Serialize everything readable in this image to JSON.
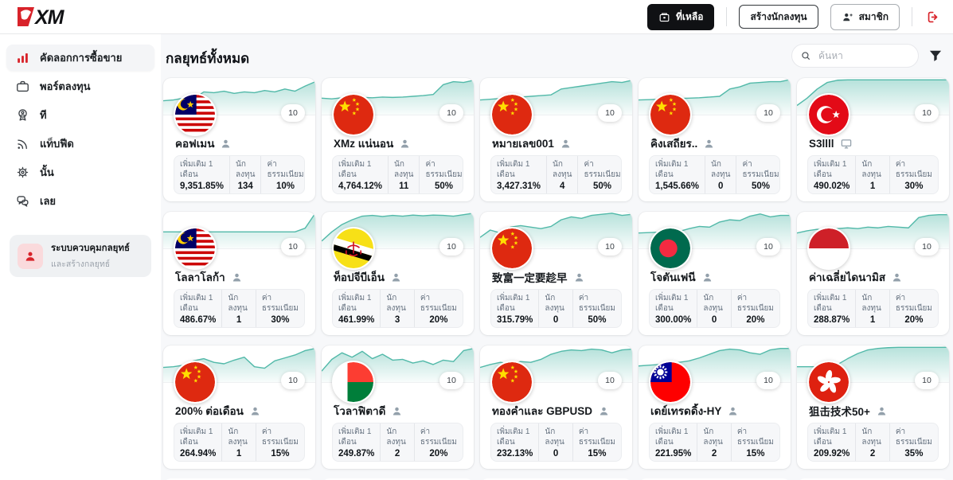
{
  "colors": {
    "brand_red": "#d8232a",
    "chart_teal": "#52b9a9",
    "topbar_button_bg": "#101114",
    "page_bg": "#f7f8fa"
  },
  "topbar": {
    "logo_text": "XM",
    "balance_button": {
      "label": "ที่เหลือ",
      "icon": "wallet-icon"
    },
    "create_investor_button": {
      "label": "สร้างนักลงทุน"
    },
    "member_button": {
      "label": "สมาชิก",
      "icon": "person-add-icon"
    },
    "logout": {
      "icon": "logout-icon"
    }
  },
  "sidebar": {
    "items": [
      {
        "label": "คัดลอกการซื้อขาย",
        "icon": "bar-chart-icon",
        "active": true
      },
      {
        "label": "พอร์ตลงทุน",
        "icon": "briefcase-icon",
        "active": false
      },
      {
        "label": "ที",
        "icon": "medal-icon",
        "active": false
      },
      {
        "label": "แท็บฟีด",
        "icon": "rss-icon",
        "active": false
      },
      {
        "label": "นั้น",
        "icon": "gear-icon",
        "active": false
      },
      {
        "label": "เลย",
        "icon": "chat-icon",
        "active": false
      }
    ],
    "promo": {
      "title": "ระบบควบคุมกลยุทธ์",
      "subtitle": "และสร้างกลยุทธ์",
      "icon": "person-icon"
    }
  },
  "main": {
    "title": "กลยุทธ์ทั้งหมด",
    "search_placeholder": "ค้นหา",
    "search_icon": "search-icon",
    "filter_icon": "filter-icon",
    "stat_labels": {
      "gain": "เพิ่มเติม 1 เดือน",
      "investors": "นักลงทุน",
      "fee": "ค่า​ธรรมเนียม"
    },
    "strategies": [
      {
        "name": "คอฟเมน",
        "flag": "malaysia",
        "owner_icon": "person-icon",
        "badge": "10",
        "gain": "9,351.85%",
        "investors": "134",
        "fee": "10%",
        "spark": [
          62,
          60,
          55,
          57,
          38,
          40,
          36,
          42,
          38,
          40,
          34,
          38,
          30,
          36,
          22,
          10
        ]
      },
      {
        "name": "XMz แน่นอน",
        "flag": "china",
        "owner_icon": "person-icon",
        "badge": "10",
        "gain": "4,764.12%",
        "investors": "11",
        "fee": "50%",
        "spark": [
          55,
          57,
          54,
          55,
          53,
          54,
          52,
          53,
          52,
          50,
          48,
          45,
          18,
          10,
          12,
          6
        ]
      },
      {
        "name": "หมายเลข001",
        "flag": "china",
        "owner_icon": "person-icon",
        "badge": "10",
        "gain": "3,427.31%",
        "investors": "4",
        "fee": "50%",
        "spark": [
          60,
          58,
          56,
          54,
          52,
          50,
          48,
          46,
          30,
          26,
          22,
          18,
          14,
          10,
          12,
          6
        ]
      },
      {
        "name": "คิงเสถียร..",
        "flag": "china",
        "owner_icon": "person-icon",
        "badge": "10",
        "gain": "1,545.66%",
        "investors": "0",
        "fee": "50%",
        "spark": [
          60,
          59,
          58,
          57,
          56,
          55,
          54,
          52,
          50,
          30,
          24,
          14,
          12,
          10,
          10,
          4
        ]
      },
      {
        "name": "S3llll",
        "flag": "turkey",
        "owner_icon": "monitor-icon",
        "badge": "10",
        "gain": "490.02%",
        "investors": "1",
        "fee": "30%",
        "spark": [
          75,
          55,
          30,
          12,
          6,
          5,
          5,
          5,
          5,
          5,
          5,
          5,
          5,
          5,
          5,
          5
        ]
      },
      {
        "name": "โลลาโลก้า",
        "flag": "malaysia",
        "owner_icon": "person-icon",
        "badge": "10",
        "gain": "486.67%",
        "investors": "1",
        "fee": "30%",
        "spark": [
          55,
          55,
          55,
          55,
          55,
          55,
          55,
          55,
          55,
          55,
          55,
          55,
          55,
          55,
          45,
          4
        ]
      },
      {
        "name": "ท็อปจีบีเอ็น",
        "flag": "brunei",
        "owner_icon": "person-icon",
        "badge": "10",
        "gain": "461.99%",
        "investors": "3",
        "fee": "20%",
        "spark": [
          80,
          55,
          35,
          22,
          12,
          10,
          13,
          10,
          12,
          9,
          11,
          9,
          10,
          12,
          8,
          4
        ]
      },
      {
        "name": "致富一定要趁早",
        "flag": "china",
        "owner_icon": "person-icon",
        "badge": "10",
        "gain": "315.79%",
        "investors": "0",
        "fee": "50%",
        "spark": [
          70,
          50,
          58,
          42,
          38,
          42,
          46,
          40,
          22,
          14,
          18,
          10,
          7,
          4,
          10,
          7
        ]
      },
      {
        "name": "โจตันเฟนี",
        "flag": "bangladesh",
        "owner_icon": "person-icon",
        "badge": "10",
        "gain": "300.00%",
        "investors": "0",
        "fee": "20%",
        "spark": [
          58,
          57,
          56,
          55,
          54,
          46,
          40,
          42,
          28,
          22,
          24,
          12,
          6,
          14,
          10,
          10
        ]
      },
      {
        "name": "ค่าเฉลี่ยไดนามิส",
        "flag": "indonesia",
        "owner_icon": "person-icon",
        "badge": "10",
        "gain": "288.87%",
        "investors": "1",
        "fee": "20%",
        "spark": [
          58,
          52,
          48,
          50,
          46,
          44,
          46,
          42,
          44,
          40,
          42,
          44,
          16,
          10,
          8,
          8
        ]
      },
      {
        "name": "200% ต่อเดือน",
        "flag": "china",
        "owner_icon": "person-icon",
        "badge": "10",
        "gain": "264.94%",
        "investors": "1",
        "fee": "15%",
        "spark": [
          60,
          58,
          54,
          42,
          36,
          46,
          50,
          40,
          32,
          58,
          62,
          42,
          34,
          26,
          14,
          8
        ]
      },
      {
        "name": "โวลาฟิตาดี",
        "flag": "madagascar",
        "owner_icon": "person-icon",
        "badge": "10",
        "gain": "249.87%",
        "investors": "2",
        "fee": "20%",
        "spark": [
          70,
          38,
          20,
          32,
          16,
          36,
          24,
          40,
          38,
          48,
          42,
          52,
          40,
          44,
          14,
          8
        ]
      },
      {
        "name": "ทองคำและ GBPUSD",
        "flag": "china",
        "owner_icon": "person-icon",
        "badge": "10",
        "gain": "232.13%",
        "investors": "0",
        "fee": "15%",
        "spark": [
          60,
          52,
          46,
          50,
          44,
          46,
          38,
          24,
          16,
          12,
          14,
          10,
          12,
          20,
          12,
          10
        ]
      },
      {
        "name": "เดย์เทรดดิ้ง-HY",
        "flag": "taiwan",
        "owner_icon": "person-icon",
        "badge": "10",
        "gain": "221.95%",
        "investors": "2",
        "fee": "15%",
        "spark": [
          56,
          54,
          52,
          50,
          46,
          42,
          34,
          24,
          14,
          10,
          12,
          20,
          24,
          12,
          8,
          8
        ]
      },
      {
        "name": "狙击技术50+",
        "flag": "hongkong",
        "owner_icon": "person-icon",
        "badge": "10",
        "gain": "209.92%",
        "investors": "2",
        "fee": "35%",
        "spark": [
          58,
          58,
          58,
          56,
          52,
          36,
          22,
          12,
          8,
          6,
          5,
          5,
          5,
          5,
          5,
          5
        ]
      }
    ]
  }
}
